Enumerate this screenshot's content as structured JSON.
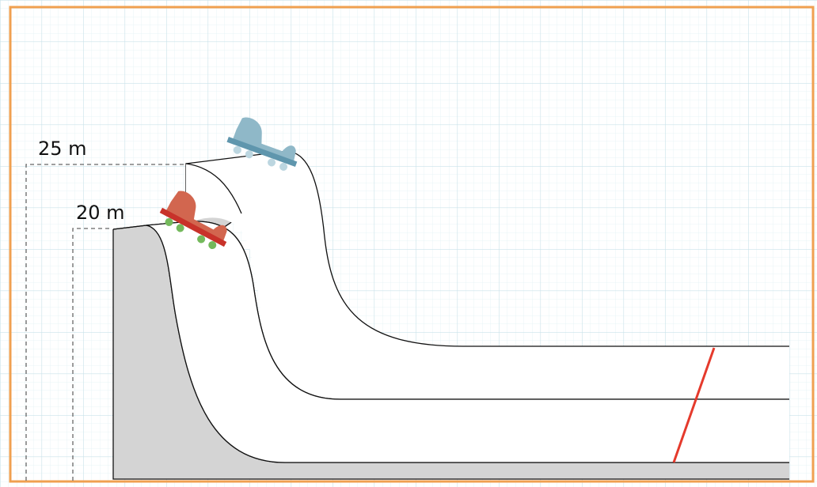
{
  "labels": {
    "height_high": "25 m",
    "height_low": "20 m"
  },
  "colors": {
    "frame": "#f0a050",
    "grid": "#c9e2ea",
    "track_fill": "#d4d4d4",
    "track_stroke": "#111111",
    "finish_line": "#e53a2c",
    "blue_cart": "#8fb8c8",
    "blue_cart_bar": "#5f96ad",
    "blue_cart_wheel": "#bcd6e0",
    "red_cart": "#d2664f",
    "red_cart_bar": "#c8322a",
    "red_cart_wheel": "#74b95c"
  }
}
